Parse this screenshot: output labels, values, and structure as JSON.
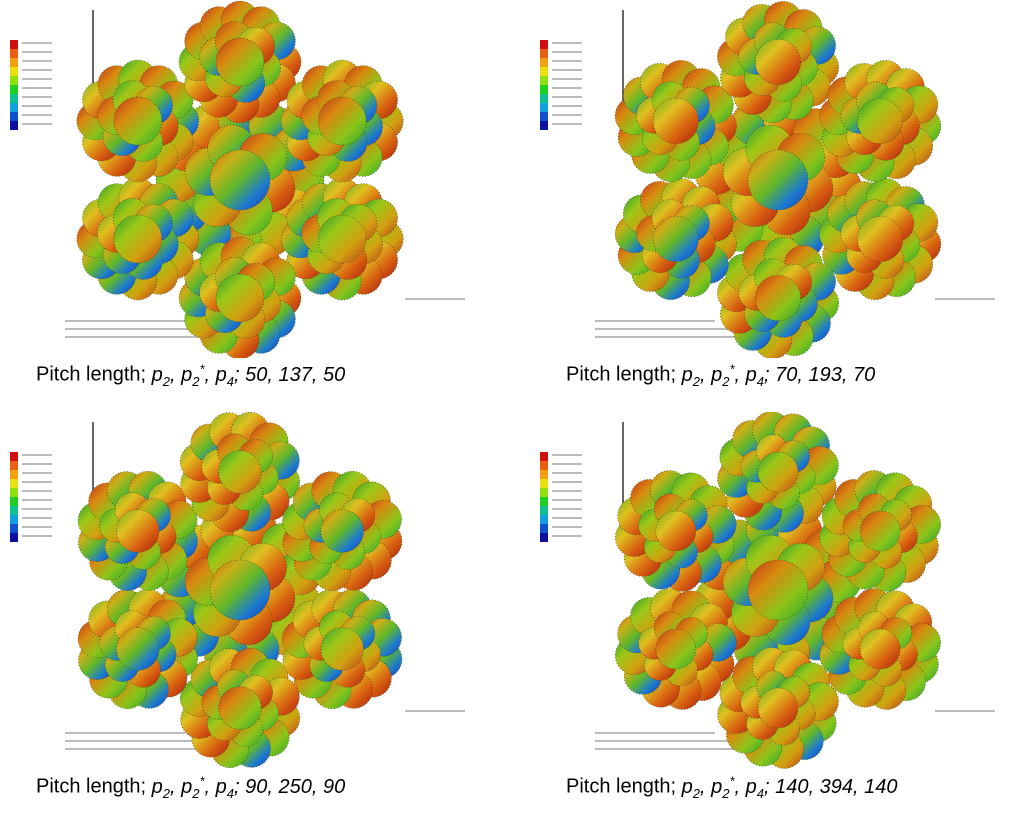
{
  "panels": [
    {
      "caption": {
        "label": "Pitch length;",
        "symbols": [
          {
            "base": "p",
            "sub": "2",
            "sep": ","
          },
          {
            "base": "p",
            "sub": "2",
            "sup": "*",
            "sep": ","
          },
          {
            "base": "p",
            "sub": "4",
            "sep": ";"
          }
        ],
        "values": "50, 137, 50"
      }
    },
    {
      "caption": {
        "label": "Pitch length;",
        "symbols": [
          {
            "base": "p",
            "sub": "2",
            "sep": ","
          },
          {
            "base": "p",
            "sub": "2",
            "sup": "*",
            "sep": ","
          },
          {
            "base": "p",
            "sub": "4",
            "sep": ";"
          }
        ],
        "values": "70, 193, 70"
      }
    },
    {
      "caption": {
        "label": "Pitch length;",
        "symbols": [
          {
            "base": "p",
            "sub": "2",
            "sep": ","
          },
          {
            "base": "p",
            "sub": "2",
            "sup": "*",
            "sep": ","
          },
          {
            "base": "p",
            "sub": "4",
            "sep": ";"
          }
        ],
        "values": "90, 250, 90"
      }
    },
    {
      "caption": {
        "label": "Pitch length;",
        "symbols": [
          {
            "base": "p",
            "sub": "2",
            "sep": ","
          },
          {
            "base": "p",
            "sub": "2",
            "sup": "*",
            "sep": ","
          },
          {
            "base": "p",
            "sub": "4",
            "sep": ";"
          }
        ],
        "values": "140, 394, 140"
      }
    }
  ]
}
